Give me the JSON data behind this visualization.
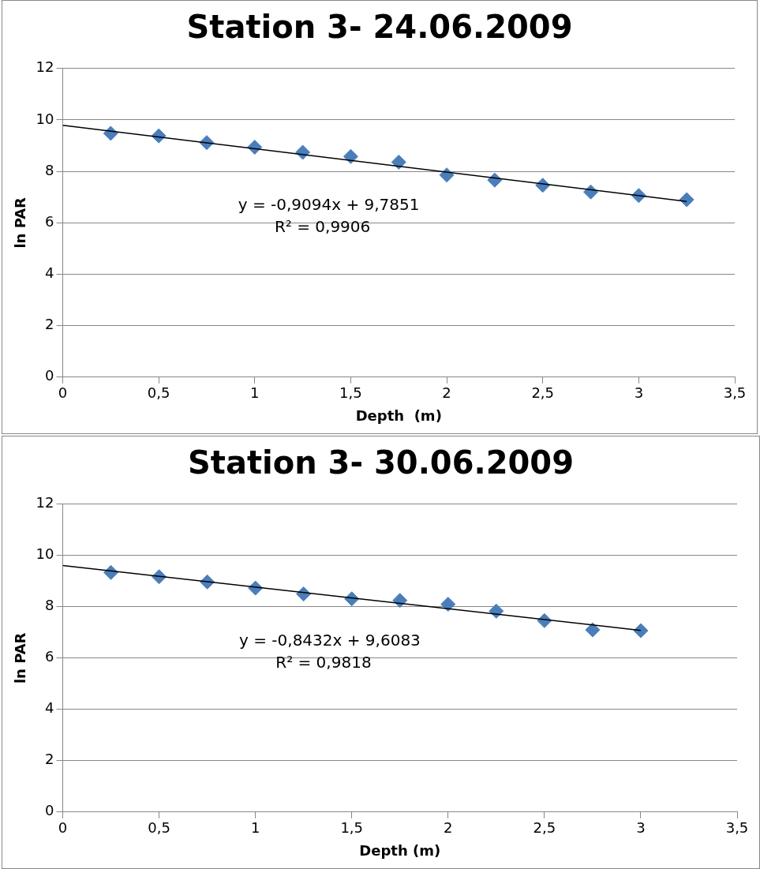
{
  "chart_data": [
    {
      "type": "scatter",
      "title": "Station 3- 24.06.2009",
      "xlabel": "Depth  (m)",
      "ylabel": "ln PAR",
      "xlim": [
        0,
        3.5
      ],
      "xticks": [
        0,
        {
          "value": 0.5,
          "label": "0,5"
        },
        1,
        {
          "value": 1.5,
          "label": "1,5"
        },
        2,
        {
          "value": 2.5,
          "label": "2,5"
        },
        3,
        {
          "value": 3.5,
          "label": "3,5"
        }
      ],
      "ylim": [
        0,
        12
      ],
      "yticks": [
        0,
        2,
        4,
        6,
        8,
        10,
        12
      ],
      "grid": "y",
      "legend": false,
      "series": [
        {
          "type": "scatter",
          "marker": "diamond",
          "color": "#4a7ebb",
          "x": [
            0.25,
            0.5,
            0.75,
            1,
            1.25,
            1.5,
            1.75,
            2,
            2.25,
            2.5,
            2.75,
            3,
            3.25
          ],
          "values": [
            9.48,
            9.38,
            9.12,
            8.94,
            8.74,
            8.58,
            8.36,
            7.86,
            7.66,
            7.46,
            7.2,
            7.06,
            6.9
          ]
        },
        {
          "type": "line",
          "color": "#000000",
          "x": [
            0,
            3.25
          ],
          "values": [
            9.79,
            6.83
          ]
        }
      ],
      "annotations": [
        "y = -0,9094x + 9,7851",
        "R² = 0,9906"
      ]
    },
    {
      "type": "scatter",
      "title": "Station 3- 30.06.2009",
      "xlabel": "Depth (m)",
      "ylabel": "ln PAR",
      "xlim": [
        0,
        3.5
      ],
      "xticks": [
        0,
        {
          "value": 0.5,
          "label": "0,5"
        },
        1,
        {
          "value": 1.5,
          "label": "1,5"
        },
        2,
        {
          "value": 2.5,
          "label": "2,5"
        },
        3,
        {
          "value": 3.5,
          "label": "3,5"
        }
      ],
      "ylim": [
        0,
        12
      ],
      "yticks": [
        0,
        2,
        4,
        6,
        8,
        10,
        12
      ],
      "grid": "y",
      "legend": false,
      "series": [
        {
          "type": "scatter",
          "marker": "diamond",
          "color": "#4a7ebb",
          "x": [
            0.25,
            0.5,
            0.75,
            1,
            1.25,
            1.5,
            1.75,
            2,
            2.25,
            2.5,
            2.75,
            3
          ],
          "values": [
            9.34,
            9.17,
            8.97,
            8.73,
            8.5,
            8.31,
            8.25,
            8.1,
            7.83,
            7.46,
            7.1,
            7.07
          ]
        },
        {
          "type": "line",
          "color": "#000000",
          "x": [
            0,
            3
          ],
          "values": [
            9.61,
            7.08
          ]
        }
      ],
      "annotations": [
        "y = -0,8432x + 9,6083",
        "R² = 0,9818"
      ]
    }
  ]
}
